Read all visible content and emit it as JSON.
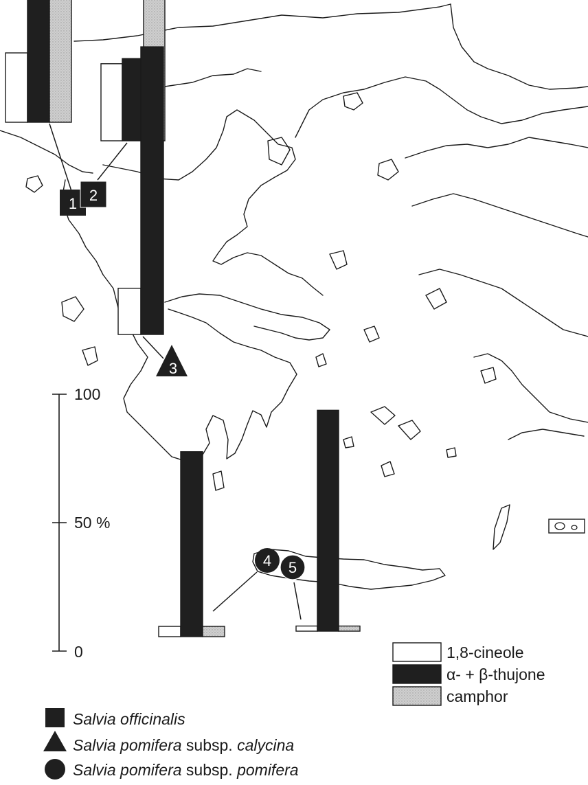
{
  "colors": {
    "cineole": "#ffffff",
    "thujone": "#1f1f1f",
    "camphor": "#c9c9c9",
    "marker": "#1f1f1f",
    "coast": "#1a1a1a"
  },
  "chart_data": {
    "type": "bar",
    "series": [
      {
        "name": "1,8-cineole",
        "color": "#ffffff"
      },
      {
        "name": "α- + β-thujone",
        "color": "#1f1f1f"
      },
      {
        "name": "camphor",
        "color": "#c9c9c9"
      }
    ],
    "scale": {
      "min": 0,
      "max": 100,
      "ticks": [
        {
          "value": 100,
          "label": "100"
        },
        {
          "value": 50,
          "label": "50 %"
        },
        {
          "value": 0,
          "label": "0"
        }
      ]
    },
    "sites": [
      {
        "label": "1",
        "species": "Salvia officinalis",
        "shape": "square",
        "values": [
          27,
          63,
          58
        ]
      },
      {
        "label": "2",
        "species": "Salvia officinalis",
        "shape": "square",
        "values": [
          30,
          32,
          72
        ]
      },
      {
        "label": "3",
        "species": "Salvia pomifera subsp. calycina",
        "shape": "triangle",
        "values": [
          18,
          112,
          0
        ]
      },
      {
        "label": "4",
        "species": "Salvia pomifera subsp. pomifera",
        "shape": "circle",
        "values": [
          4,
          72,
          4
        ]
      },
      {
        "label": "5",
        "species": "Salvia pomifera subsp. pomifera",
        "shape": "circle",
        "values": [
          2,
          86,
          2
        ]
      }
    ]
  },
  "legend": {
    "cineole": "1,8-cineole",
    "thujone": "α- + β-thujone",
    "camphor": "camphor"
  },
  "species_legend": [
    {
      "shape": "square",
      "name_italic": "Salvia officinalis",
      "suffix": "",
      "suffix_italic": ""
    },
    {
      "shape": "triangle",
      "name_italic": "Salvia pomifera",
      "suffix": " subsp. ",
      "suffix_italic": "calycina"
    },
    {
      "shape": "circle",
      "name_italic": "Salvia pomifera",
      "suffix": " subsp. ",
      "suffix_italic": "pomifera"
    }
  ]
}
